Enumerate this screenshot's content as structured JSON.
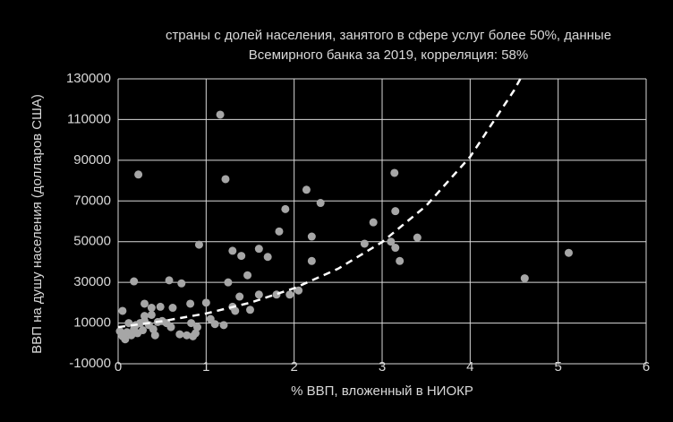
{
  "chart_data": {
    "type": "scatter",
    "title": [
      "страны с долей населения, занятого в сфере услуг более 50%, данные",
      "Всемирного банка за 2019, корреляция: 58%"
    ],
    "x_label": "% ВВП, вложенный в НИОКР",
    "y_label": "ВВП на душу населения (долларов США)",
    "grid": true,
    "xlim": [
      0,
      6
    ],
    "xticks": [
      0,
      1,
      2,
      3,
      4,
      5,
      6
    ],
    "ylim": [
      -10000,
      130000
    ],
    "yticks": [
      -10000,
      10000,
      30000,
      50000,
      70000,
      90000,
      110000,
      130000
    ],
    "series": [
      {
        "color": "#a6a6a6",
        "x": [
          1.16,
          0.23,
          1.22,
          3.14,
          2.14,
          2.3,
          1.9,
          3.15,
          2.9,
          1.83,
          2.2,
          3.4,
          3.1,
          3.15,
          2.8,
          1.3,
          1.6,
          0.92,
          1.4,
          1.7,
          2.2,
          3.2,
          1.47,
          1.25,
          0.58,
          0.72,
          0.18,
          1.8,
          1.95,
          2.05,
          1.6,
          1.38,
          1.3,
          1.33,
          1.5,
          0.3,
          0.38,
          0.48,
          0.62,
          0.82,
          1.0,
          0.05,
          0.12,
          0.2,
          0.25,
          0.3,
          0.35,
          0.4,
          0.45,
          0.5,
          0.55,
          0.6,
          0.7,
          0.78,
          0.85,
          0.88,
          0.9,
          0.83,
          1.05,
          1.1,
          1.2,
          0.02,
          0.05,
          0.08,
          0.1,
          0.15,
          0.18,
          0.22,
          0.28,
          0.3,
          0.42,
          0.38,
          4.62,
          5.12
        ],
        "values": [
          112400,
          83000,
          80700,
          83800,
          75500,
          69000,
          66000,
          65000,
          59500,
          55000,
          52500,
          52000,
          50000,
          47000,
          49000,
          45500,
          46500,
          48500,
          43000,
          42500,
          40500,
          40500,
          33500,
          30000,
          31000,
          29500,
          30500,
          24000,
          24000,
          26000,
          24000,
          23000,
          18000,
          16000,
          16500,
          19500,
          17500,
          18000,
          17500,
          19500,
          20000,
          16000,
          10000,
          9000,
          10000,
          11000,
          9000,
          7000,
          10500,
          11000,
          10000,
          8000,
          4500,
          4000,
          3500,
          5000,
          8000,
          10000,
          12000,
          9500,
          9000,
          6000,
          3500,
          2000,
          5500,
          4000,
          7000,
          5000,
          6500,
          13500,
          4000,
          14000,
          32000,
          44500
        ]
      }
    ],
    "trendline": {
      "color": "#ffffff",
      "dash": true,
      "x": [
        0,
        0.5,
        1,
        1.5,
        2,
        2.5,
        3,
        3.5,
        4,
        4.5,
        4.57
      ],
      "values": [
        8000,
        10900,
        14700,
        20000,
        27100,
        36700,
        49800,
        67600,
        91700,
        124400,
        130000
      ]
    }
  }
}
